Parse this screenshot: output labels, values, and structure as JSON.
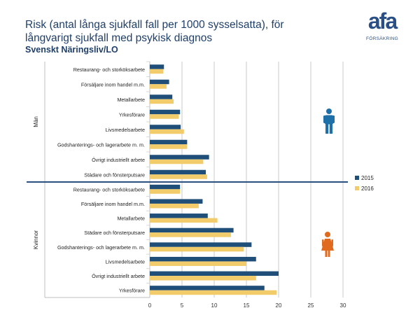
{
  "header": {
    "title": "Risk (antal långa sjukfall fall per 1000 sysselsatta), för långvarigt sjukfall med psykisk  diagnos",
    "subtitle": "Svenskt Näringsliv/LO"
  },
  "logo": {
    "word": "afa",
    "sub": "FÖRSÄKRING"
  },
  "chart_data": {
    "type": "bar",
    "orientation": "horizontal",
    "xlim": [
      0,
      30
    ],
    "xticks": [
      0,
      5,
      10,
      15,
      20,
      25,
      30
    ],
    "grid": true,
    "legend_position": "right",
    "legend": [
      "2015",
      "2016"
    ],
    "colors": {
      "2015": "#1f4e79",
      "2016": "#f2cc6b",
      "grid": "#c8c8c8",
      "divider": "#2a5080"
    },
    "groups": [
      {
        "label": "Män",
        "icon": "man-figure-icon",
        "icon_color": "#1f6fa8",
        "categories": [
          "Restaurang- och storköksarbete",
          "Försäljare inom handel m.m.",
          "Metallarbete",
          "Yrkesförare",
          "Livsmedelsarbete",
          "Godshanterings- och lagerarbete m. m.",
          "Övrigt industriellt arbete",
          "Städare och fönsterputsare"
        ],
        "series": [
          {
            "name": "2015",
            "values": [
              2.2,
              3.0,
              3.5,
              4.7,
              4.8,
              5.8,
              9.2,
              8.7
            ]
          },
          {
            "name": "2016",
            "values": [
              2.1,
              2.6,
              3.7,
              4.5,
              5.3,
              5.8,
              8.3,
              8.9
            ]
          }
        ]
      },
      {
        "label": "Kvinnor",
        "icon": "woman-figure-icon",
        "icon_color": "#e06a1f",
        "categories": [
          "Restaurang- och storköksarbete",
          "Försäljare inom handel m.m.",
          "Metallarbete",
          "Städare och fönsterputsare",
          "Godshanterings- och lagerarbete m. m.",
          "Livsmedelsarbete",
          "Övrigt industriellt arbete",
          "Yrkesförare"
        ],
        "series": [
          {
            "name": "2015",
            "values": [
              4.7,
              8.2,
              9.0,
              13.0,
              15.8,
              16.5,
              20.0,
              17.8
            ]
          },
          {
            "name": "2016",
            "values": [
              4.7,
              7.6,
              10.5,
              12.6,
              14.6,
              15.0,
              16.5,
              19.7
            ]
          }
        ]
      }
    ]
  }
}
